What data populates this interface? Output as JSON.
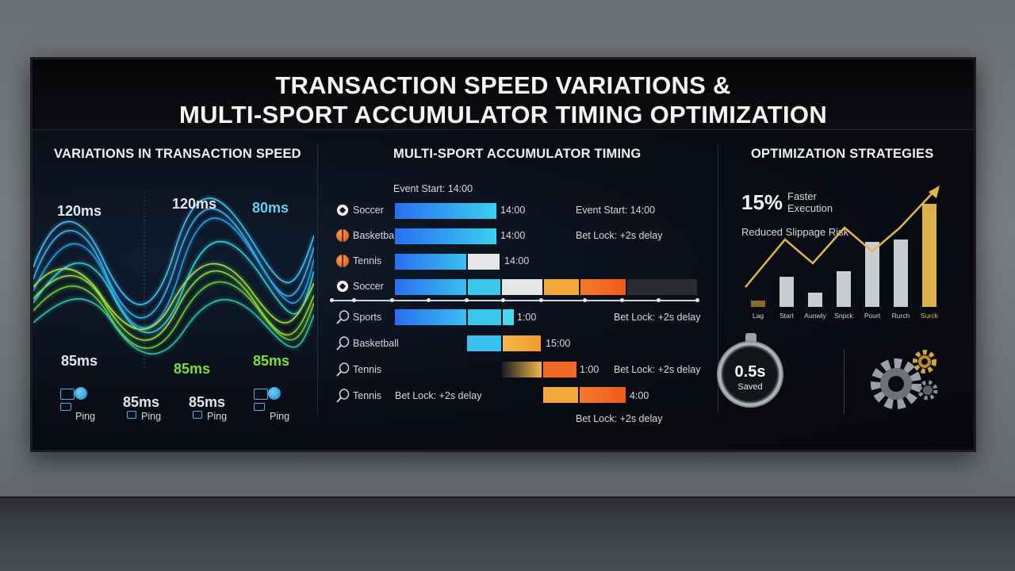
{
  "title_line1": "TRANSACTION SPEED VARIATIONS &",
  "title_line2": "MULTI-SPORT ACCUMULATOR TIMING OPTIMIZATION",
  "sections": {
    "speed": "VARIATIONS IN TRANSACTION SPEED",
    "timing": "MULTI-SPORT ACCUMULATOR TIMING",
    "strategies": "OPTIMIZATION STRATEGIES"
  },
  "speed_panel": {
    "labels": [
      "120ms",
      "120ms",
      "80ms",
      "85ms",
      "85ms",
      "85ms"
    ],
    "ping_values": [
      "85ms",
      "85ms"
    ],
    "ping_label": "Ping",
    "colors": {
      "blue": "#38b4ff",
      "green": "#8ee63a"
    }
  },
  "timing_panel": {
    "event_start": "Event Start: 14:00",
    "rows": [
      {
        "sport": "Soccer",
        "icon": "soccer-ball-icon",
        "time": "14:00",
        "note": "Event Start: 14:00"
      },
      {
        "sport": "Basketball",
        "icon": "basketball-icon",
        "time": "14:00",
        "note": "Bet Lock: +2s delay"
      },
      {
        "sport": "Tennis",
        "icon": "basketball-icon",
        "time": "14:00",
        "note": ""
      },
      {
        "sport": "Soccer",
        "icon": "soccer-ball-icon",
        "time": "",
        "note": ""
      },
      {
        "sport": "Sports",
        "icon": "tennis-racket-icon",
        "time": "1:00",
        "note": "Bet Lock: +2s delay"
      },
      {
        "sport": "Basketball",
        "icon": "tennis-racket-icon",
        "time": "15:00",
        "note": ""
      },
      {
        "sport": "Tennis",
        "icon": "tennis-racket-icon",
        "time": "1:00",
        "note": "Bet Lock: +2s delay"
      },
      {
        "sport": "Tennis",
        "icon": "tennis-racket-icon",
        "time": "4:00",
        "note": "Bet Lock: +2s delay"
      }
    ],
    "bottom_note": "Bet Lock: +2s delay"
  },
  "strategies_panel": {
    "pct": "15%",
    "pct_label_1": "Faster",
    "pct_label_2": "Execution",
    "slippage": "Reduced Slippage Risk",
    "chart_data": {
      "type": "bar",
      "categories": [
        "Lag",
        "Start",
        "Aunwly",
        "Snpck",
        "Pourt",
        "Rurch",
        "Surck"
      ],
      "values": [
        8,
        38,
        18,
        45,
        82,
        85,
        130
      ]
    },
    "gauge_value": "0.5s",
    "gauge_label": "Saved",
    "accent": "#e0b84a"
  }
}
